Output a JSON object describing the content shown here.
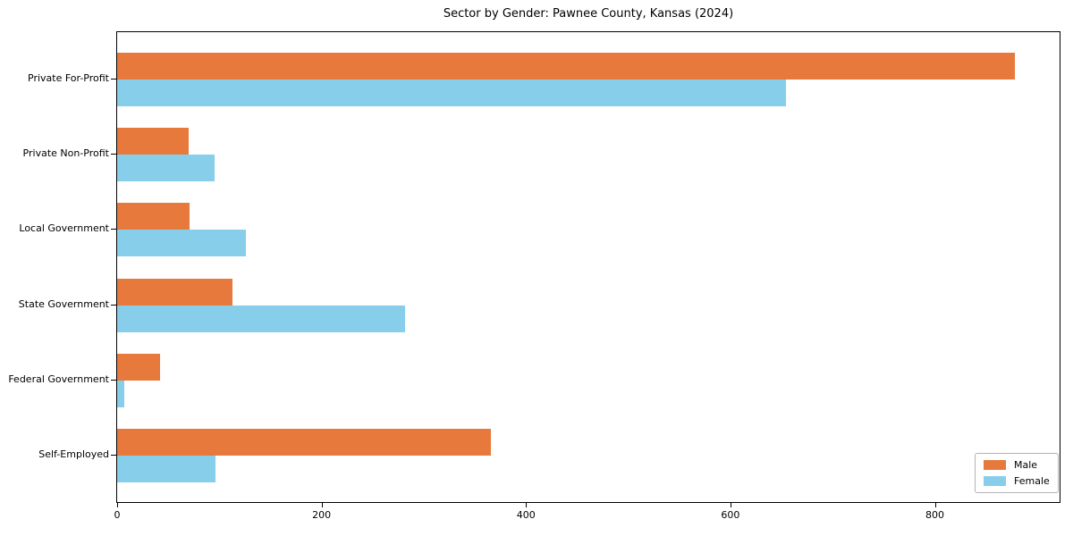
{
  "chart_data": {
    "type": "bar",
    "orientation": "horizontal",
    "title": "Sector by Gender: Pawnee County, Kansas (2024)",
    "categories": [
      "Private For-Profit",
      "Private Non-Profit",
      "Local Government",
      "State Government",
      "Federal Government",
      "Self-Employed"
    ],
    "series": [
      {
        "name": "Male",
        "color": "#e8793d",
        "values": [
          878,
          70,
          71,
          113,
          42,
          366
        ]
      },
      {
        "name": "Female",
        "color": "#87ceeb",
        "values": [
          654,
          95,
          126,
          282,
          7,
          96
        ]
      }
    ],
    "xlabel": "",
    "ylabel": "",
    "xlim": [
      0,
      922
    ],
    "x_ticks": [
      0,
      200,
      400,
      600,
      800
    ],
    "legend_position": "lower right",
    "grid": false
  }
}
